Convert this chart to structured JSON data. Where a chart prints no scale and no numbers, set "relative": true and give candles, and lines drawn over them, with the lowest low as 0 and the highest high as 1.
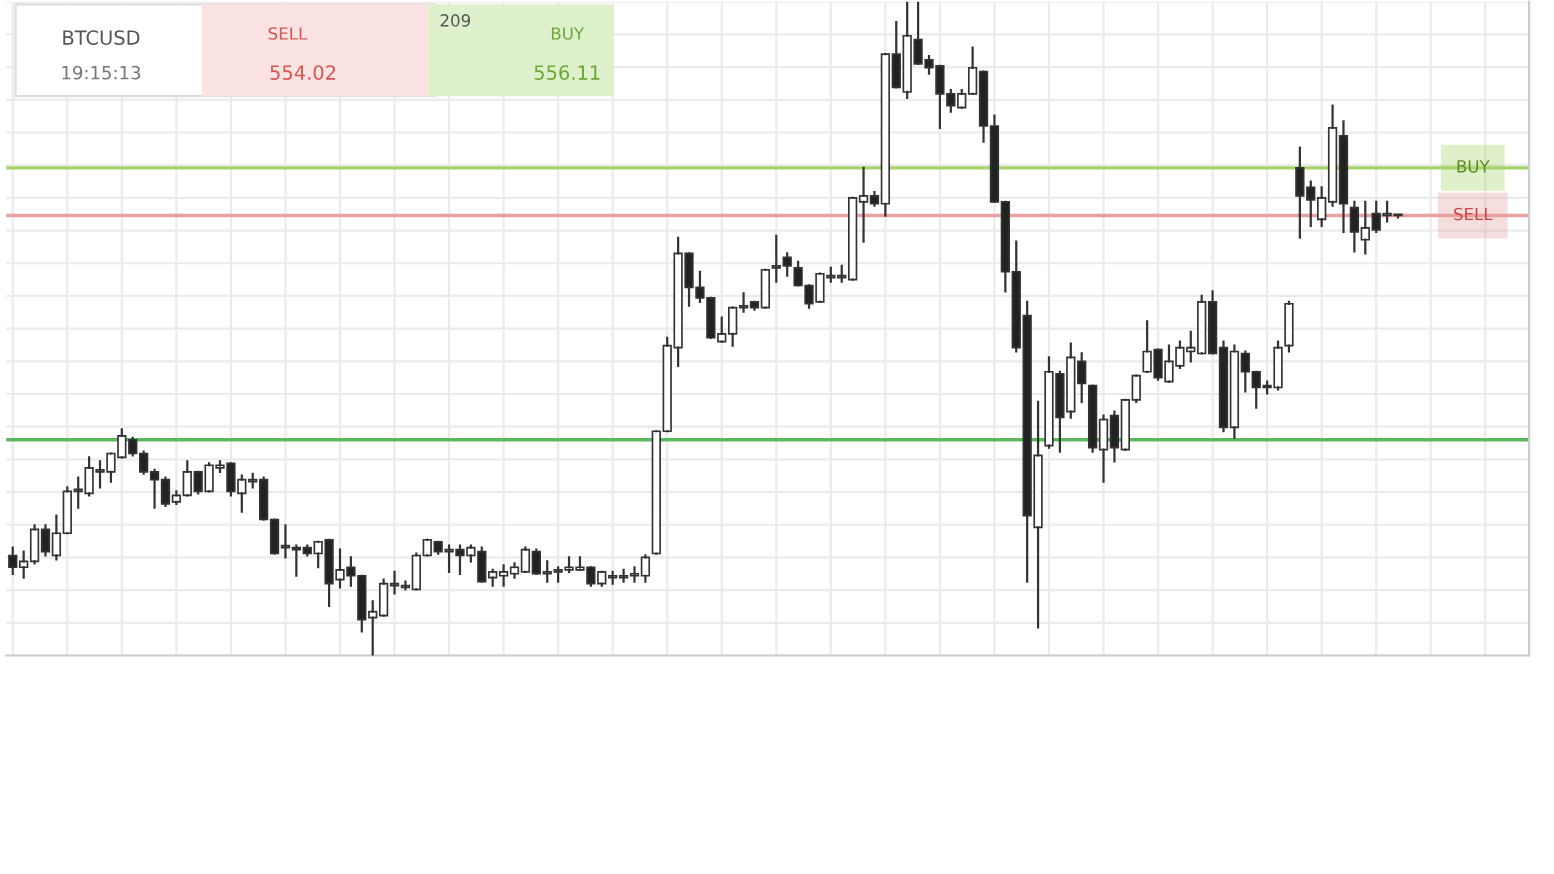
{
  "chart_data": {
    "type": "candlestick",
    "relative": true,
    "grid": true,
    "legend": false,
    "annotations": [
      "BTCUSD",
      "19:15:13",
      "SELL",
      "554.02",
      "209",
      "BUY",
      "556.11"
    ],
    "ref_lines": [
      {
        "axis": "y",
        "value": 0.746,
        "label": "BUY",
        "color": "#a5d46a"
      },
      {
        "axis": "y",
        "value": 0.673,
        "label": "SELL",
        "color": "#e8a0a0"
      },
      {
        "axis": "y",
        "value": 0.33,
        "label": null,
        "color": "#5cb85c"
      }
    ],
    "categories": [
      null,
      null,
      null,
      null,
      null,
      null,
      null,
      null,
      null,
      null,
      null,
      null,
      null,
      null,
      null,
      null,
      null,
      null,
      null,
      null,
      null,
      null,
      null,
      null,
      null,
      null,
      null,
      null,
      null,
      null,
      null,
      null,
      null,
      null,
      null,
      null,
      null,
      null,
      null,
      null,
      null,
      null,
      null,
      null,
      null,
      null,
      null,
      null,
      null,
      null,
      null,
      null,
      null,
      null,
      null,
      null,
      null,
      null,
      null,
      null,
      null,
      null,
      null,
      null,
      null,
      null,
      null,
      null,
      null,
      null,
      null,
      null,
      null,
      null,
      null,
      null,
      null,
      null,
      null,
      null,
      null,
      null,
      null,
      null,
      null,
      null,
      null,
      null,
      null,
      null,
      null,
      null,
      null,
      null,
      null,
      null,
      null,
      null,
      null,
      null,
      null,
      null,
      null,
      null,
      null,
      null,
      null,
      null,
      null,
      null,
      null,
      null,
      null,
      null,
      null,
      null,
      null,
      null,
      null,
      null,
      null,
      null,
      null,
      null,
      null,
      null,
      null,
      null
    ],
    "ohlc": [
      [
        0.153,
        0.165,
        0.125,
        0.135
      ],
      [
        0.135,
        0.159,
        0.119,
        0.144
      ],
      [
        0.144,
        0.199,
        0.141,
        0.193
      ],
      [
        0.193,
        0.199,
        0.153,
        0.159
      ],
      [
        0.153,
        0.214,
        0.147,
        0.187
      ],
      [
        0.187,
        0.257,
        0.187,
        0.251
      ],
      [
        0.251,
        0.272,
        0.226,
        0.254
      ],
      [
        0.248,
        0.303,
        0.245,
        0.287
      ],
      [
        0.281,
        0.297,
        0.257,
        0.284
      ],
      [
        0.281,
        0.309,
        0.266,
        0.309
      ],
      [
        0.303,
        0.346,
        0.303,
        0.336
      ],
      [
        0.33,
        0.333,
        0.306,
        0.309
      ],
      [
        0.309,
        0.312,
        0.278,
        0.281
      ],
      [
        0.281,
        0.284,
        0.226,
        0.269
      ],
      [
        0.269,
        0.272,
        0.229,
        0.232
      ],
      [
        0.235,
        0.251,
        0.232,
        0.245
      ],
      [
        0.245,
        0.297,
        0.245,
        0.281
      ],
      [
        0.281,
        0.281,
        0.248,
        0.251
      ],
      [
        0.251,
        0.294,
        0.251,
        0.291
      ],
      [
        0.287,
        0.297,
        0.281,
        0.291
      ],
      [
        0.294,
        0.294,
        0.245,
        0.251
      ],
      [
        0.248,
        0.275,
        0.22,
        0.269
      ],
      [
        0.266,
        0.278,
        0.257,
        0.269
      ],
      [
        0.269,
        0.272,
        0.208,
        0.208
      ],
      [
        0.208,
        0.208,
        0.156,
        0.156
      ],
      [
        0.165,
        0.199,
        0.15,
        0.168
      ],
      [
        0.165,
        0.168,
        0.122,
        0.162
      ],
      [
        0.165,
        0.168,
        0.153,
        0.156
      ],
      [
        0.156,
        0.174,
        0.135,
        0.174
      ],
      [
        0.177,
        0.177,
        0.076,
        0.11
      ],
      [
        0.116,
        0.162,
        0.104,
        0.131
      ],
      [
        0.135,
        0.15,
        0.107,
        0.122
      ],
      [
        0.122,
        0.122,
        0.037,
        0.055
      ],
      [
        0.058,
        0.083,
        0.0,
        0.067
      ],
      [
        0.061,
        0.116,
        0.061,
        0.11
      ],
      [
        0.107,
        0.128,
        0.095,
        0.11
      ],
      [
        0.104,
        0.113,
        0.101,
        0.107
      ],
      [
        0.101,
        0.156,
        0.101,
        0.153
      ],
      [
        0.153,
        0.177,
        0.153,
        0.177
      ],
      [
        0.174,
        0.174,
        0.156,
        0.159
      ],
      [
        0.159,
        0.168,
        0.128,
        0.162
      ],
      [
        0.162,
        0.168,
        0.125,
        0.153
      ],
      [
        0.153,
        0.168,
        0.144,
        0.165
      ],
      [
        0.159,
        0.165,
        0.113,
        0.113
      ],
      [
        0.119,
        0.131,
        0.107,
        0.128
      ],
      [
        0.122,
        0.138,
        0.107,
        0.128
      ],
      [
        0.125,
        0.141,
        0.119,
        0.135
      ],
      [
        0.128,
        0.165,
        0.128,
        0.162
      ],
      [
        0.159,
        0.162,
        0.125,
        0.125
      ],
      [
        0.125,
        0.144,
        0.113,
        0.128
      ],
      [
        0.128,
        0.135,
        0.113,
        0.131
      ],
      [
        0.131,
        0.15,
        0.128,
        0.135
      ],
      [
        0.131,
        0.15,
        0.131,
        0.135
      ],
      [
        0.135,
        0.135,
        0.107,
        0.11
      ],
      [
        0.11,
        0.128,
        0.107,
        0.128
      ],
      [
        0.119,
        0.128,
        0.11,
        0.122
      ],
      [
        0.119,
        0.131,
        0.113,
        0.122
      ],
      [
        0.122,
        0.135,
        0.113,
        0.125
      ],
      [
        0.122,
        0.153,
        0.113,
        0.15
      ],
      [
        0.156,
        0.343,
        0.156,
        0.343
      ],
      [
        0.343,
        0.486,
        0.343,
        0.474
      ],
      [
        0.471,
        0.639,
        0.443,
        0.615
      ],
      [
        0.615,
        0.615,
        0.535,
        0.563
      ],
      [
        0.563,
        0.587,
        0.541,
        0.547
      ],
      [
        0.547,
        0.547,
        0.486,
        0.486
      ],
      [
        0.48,
        0.517,
        0.48,
        0.492
      ],
      [
        0.492,
        0.532,
        0.474,
        0.532
      ],
      [
        0.532,
        0.554,
        0.526,
        0.535
      ],
      [
        0.541,
        0.541,
        0.529,
        0.532
      ],
      [
        0.532,
        0.59,
        0.532,
        0.59
      ],
      [
        0.593,
        0.642,
        0.572,
        0.596
      ],
      [
        0.609,
        0.615,
        0.581,
        0.596
      ],
      [
        0.593,
        0.602,
        0.566,
        0.566
      ],
      [
        0.566,
        0.566,
        0.532,
        0.538
      ],
      [
        0.541,
        0.584,
        0.541,
        0.584
      ],
      [
        0.578,
        0.593,
        0.572,
        0.581
      ],
      [
        0.578,
        0.596,
        0.572,
        0.581
      ],
      [
        0.575,
        0.7,
        0.575,
        0.7
      ],
      [
        0.694,
        0.746,
        0.633,
        0.703
      ],
      [
        0.703,
        0.709,
        0.688,
        0.691
      ],
      [
        0.691,
        0.92,
        0.673,
        0.92
      ],
      [
        0.92,
        0.969,
        0.869,
        0.869
      ],
      [
        0.862,
        1.0,
        0.853,
        0.948
      ],
      [
        0.942,
        1.0,
        0.905,
        0.905
      ],
      [
        0.911,
        0.917,
        0.89,
        0.899
      ],
      [
        0.902,
        0.902,
        0.807,
        0.859
      ],
      [
        0.859,
        0.865,
        0.832,
        0.841
      ],
      [
        0.838,
        0.865,
        0.838,
        0.859
      ],
      [
        0.859,
        0.93,
        0.859,
        0.899
      ],
      [
        0.893,
        0.893,
        0.786,
        0.81
      ],
      [
        0.81,
        0.826,
        0.694,
        0.694
      ],
      [
        0.694,
        0.694,
        0.557,
        0.587
      ],
      [
        0.587,
        0.633,
        0.465,
        0.471
      ],
      [
        0.52,
        0.541,
        0.113,
        0.214
      ],
      [
        0.196,
        0.388,
        0.043,
        0.306
      ],
      [
        0.321,
        0.456,
        0.318,
        0.434
      ],
      [
        0.431,
        0.434,
        0.312,
        0.364
      ],
      [
        0.373,
        0.477,
        0.364,
        0.456
      ],
      [
        0.45,
        0.462,
        0.388,
        0.416
      ],
      [
        0.413,
        0.413,
        0.312,
        0.318
      ],
      [
        0.315,
        0.367,
        0.266,
        0.361
      ],
      [
        0.367,
        0.373,
        0.297,
        0.318
      ],
      [
        0.315,
        0.391,
        0.315,
        0.391
      ],
      [
        0.391,
        0.428,
        0.388,
        0.428
      ],
      [
        0.434,
        0.511,
        0.434,
        0.465
      ],
      [
        0.468,
        0.468,
        0.422,
        0.425
      ],
      [
        0.419,
        0.474,
        0.419,
        0.45
      ],
      [
        0.443,
        0.48,
        0.44,
        0.471
      ],
      [
        0.465,
        0.495,
        0.45,
        0.471
      ],
      [
        0.462,
        0.55,
        0.462,
        0.541
      ],
      [
        0.541,
        0.557,
        0.462,
        0.462
      ],
      [
        0.471,
        0.48,
        0.343,
        0.349
      ],
      [
        0.349,
        0.474,
        0.333,
        0.465
      ],
      [
        0.462,
        0.465,
        0.404,
        0.434
      ],
      [
        0.434,
        0.434,
        0.379,
        0.41
      ],
      [
        0.413,
        0.419,
        0.401,
        0.41
      ],
      [
        0.41,
        0.48,
        0.407,
        0.471
      ],
      [
        0.474,
        0.541,
        0.465,
        0.538
      ],
      [
        0.746,
        0.777,
        0.639,
        0.703
      ],
      [
        0.716,
        0.725,
        0.657,
        0.697
      ],
      [
        0.667,
        0.716,
        0.657,
        0.7
      ],
      [
        0.694,
        0.841,
        0.688,
        0.807
      ],
      [
        0.795,
        0.817,
        0.648,
        0.691
      ],
      [
        0.685,
        0.694,
        0.618,
        0.648
      ],
      [
        0.636,
        0.694,
        0.615,
        0.654
      ],
      [
        0.676,
        0.694,
        0.648,
        0.651
      ],
      [
        0.673,
        0.694,
        0.664,
        0.676
      ],
      [
        0.673,
        0.673,
        0.67,
        0.673
      ]
    ]
  }
}
